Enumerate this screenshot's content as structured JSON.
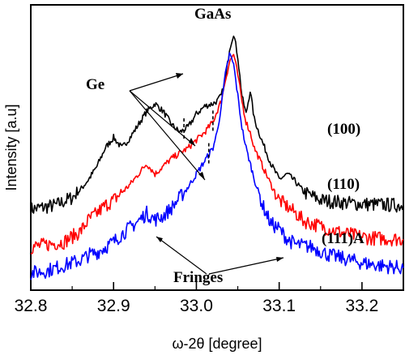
{
  "chart_data": {
    "type": "line",
    "xlabel": "ω-2θ [degree]",
    "ylabel": "Intensity [a.u]",
    "xlim": [
      32.8,
      33.25
    ],
    "x_ticks": [
      "32.8",
      "32.9",
      "33.0",
      "33.1",
      "33.2"
    ],
    "x_tick_values": [
      32.8,
      32.9,
      33.0,
      33.1,
      33.2
    ],
    "y_ticks_labeled": false,
    "grid": false,
    "legend": "none",
    "series": [
      {
        "name": "(100)",
        "color": "#000000",
        "points": [
          [
            32.8,
            0.285
          ],
          [
            32.83,
            0.3
          ],
          [
            32.85,
            0.33
          ],
          [
            32.86,
            0.36
          ],
          [
            32.87,
            0.4
          ],
          [
            32.88,
            0.45
          ],
          [
            32.89,
            0.52
          ],
          [
            32.9,
            0.56
          ],
          [
            32.91,
            0.52
          ],
          [
            32.92,
            0.56
          ],
          [
            32.94,
            0.66
          ],
          [
            32.95,
            0.69
          ],
          [
            32.96,
            0.66
          ],
          [
            32.97,
            0.61
          ],
          [
            32.98,
            0.58
          ],
          [
            32.99,
            0.6
          ],
          [
            33.0,
            0.65
          ],
          [
            33.01,
            0.68
          ],
          [
            33.02,
            0.69
          ],
          [
            33.025,
            0.7
          ],
          [
            33.03,
            0.72
          ],
          [
            33.035,
            0.78
          ],
          [
            33.04,
            0.9
          ],
          [
            33.045,
            0.96
          ],
          [
            33.05,
            0.87
          ],
          [
            33.055,
            0.72
          ],
          [
            33.06,
            0.65
          ],
          [
            33.065,
            0.74
          ],
          [
            33.07,
            0.63
          ],
          [
            33.08,
            0.54
          ],
          [
            33.09,
            0.46
          ],
          [
            33.1,
            0.4
          ],
          [
            33.11,
            0.42
          ],
          [
            33.12,
            0.39
          ],
          [
            33.13,
            0.35
          ],
          [
            33.15,
            0.32
          ],
          [
            33.18,
            0.31
          ],
          [
            33.2,
            0.305
          ],
          [
            33.25,
            0.3
          ]
        ]
      },
      {
        "name": "(110)",
        "color": "#ff0000",
        "points": [
          [
            32.8,
            0.14
          ],
          [
            32.82,
            0.15
          ],
          [
            32.84,
            0.16
          ],
          [
            32.86,
            0.2
          ],
          [
            32.87,
            0.245
          ],
          [
            32.88,
            0.27
          ],
          [
            32.89,
            0.3
          ],
          [
            32.9,
            0.32
          ],
          [
            32.91,
            0.35
          ],
          [
            32.92,
            0.38
          ],
          [
            32.93,
            0.42
          ],
          [
            32.94,
            0.46
          ],
          [
            32.95,
            0.42
          ],
          [
            32.96,
            0.45
          ],
          [
            32.97,
            0.48
          ],
          [
            32.98,
            0.5
          ],
          [
            32.99,
            0.52
          ],
          [
            33.0,
            0.55
          ],
          [
            33.01,
            0.58
          ],
          [
            33.02,
            0.62
          ],
          [
            33.03,
            0.7
          ],
          [
            33.035,
            0.78
          ],
          [
            33.04,
            0.85
          ],
          [
            33.045,
            0.88
          ],
          [
            33.05,
            0.8
          ],
          [
            33.055,
            0.7
          ],
          [
            33.06,
            0.62
          ],
          [
            33.065,
            0.58
          ],
          [
            33.07,
            0.52
          ],
          [
            33.08,
            0.45
          ],
          [
            33.09,
            0.38
          ],
          [
            33.1,
            0.32
          ],
          [
            33.12,
            0.27
          ],
          [
            33.13,
            0.24
          ],
          [
            33.15,
            0.22
          ],
          [
            33.17,
            0.2
          ],
          [
            33.19,
            0.185
          ],
          [
            33.21,
            0.175
          ],
          [
            33.25,
            0.17
          ]
        ]
      },
      {
        "name": "(111)A",
        "color": "#0000ff",
        "points": [
          [
            32.8,
            0.04
          ],
          [
            32.82,
            0.05
          ],
          [
            32.84,
            0.07
          ],
          [
            32.86,
            0.09
          ],
          [
            32.87,
            0.11
          ],
          [
            32.88,
            0.12
          ],
          [
            32.89,
            0.14
          ],
          [
            32.9,
            0.16
          ],
          [
            32.91,
            0.19
          ],
          [
            32.92,
            0.215
          ],
          [
            32.93,
            0.24
          ],
          [
            32.94,
            0.27
          ],
          [
            32.95,
            0.245
          ],
          [
            32.96,
            0.26
          ],
          [
            32.97,
            0.29
          ],
          [
            32.98,
            0.33
          ],
          [
            32.99,
            0.37
          ],
          [
            33.0,
            0.42
          ],
          [
            33.01,
            0.47
          ],
          [
            33.02,
            0.52
          ],
          [
            33.025,
            0.58
          ],
          [
            33.03,
            0.68
          ],
          [
            33.035,
            0.8
          ],
          [
            33.04,
            0.88
          ],
          [
            33.045,
            0.84
          ],
          [
            33.05,
            0.72
          ],
          [
            33.055,
            0.6
          ],
          [
            33.06,
            0.52
          ],
          [
            33.07,
            0.4
          ],
          [
            33.08,
            0.3
          ],
          [
            33.09,
            0.23
          ],
          [
            33.1,
            0.21
          ],
          [
            33.11,
            0.17
          ],
          [
            33.12,
            0.15
          ],
          [
            33.14,
            0.14
          ],
          [
            33.16,
            0.11
          ],
          [
            33.18,
            0.095
          ],
          [
            33.2,
            0.08
          ],
          [
            33.22,
            0.07
          ],
          [
            33.25,
            0.06
          ]
        ]
      }
    ],
    "annotations": [
      {
        "text": "GaAs",
        "x": 33.045,
        "y": 1.0
      },
      {
        "text": "Ge",
        "x": 32.89,
        "y": 0.85
      },
      {
        "text": "(100)",
        "x": 33.18,
        "y": 0.53
      },
      {
        "text": "(110)",
        "x": 33.18,
        "y": 0.35
      },
      {
        "text": "(111)A",
        "x": 33.18,
        "y": 0.2
      },
      {
        "text": "Fringes",
        "x": 33.02,
        "y": 0.02
      }
    ],
    "dashed_markers": [
      {
        "x": 32.985,
        "series": "(100)"
      },
      {
        "x": 33.02,
        "series": "(110)"
      },
      {
        "x": 33.015,
        "series": "(111)A"
      }
    ]
  }
}
